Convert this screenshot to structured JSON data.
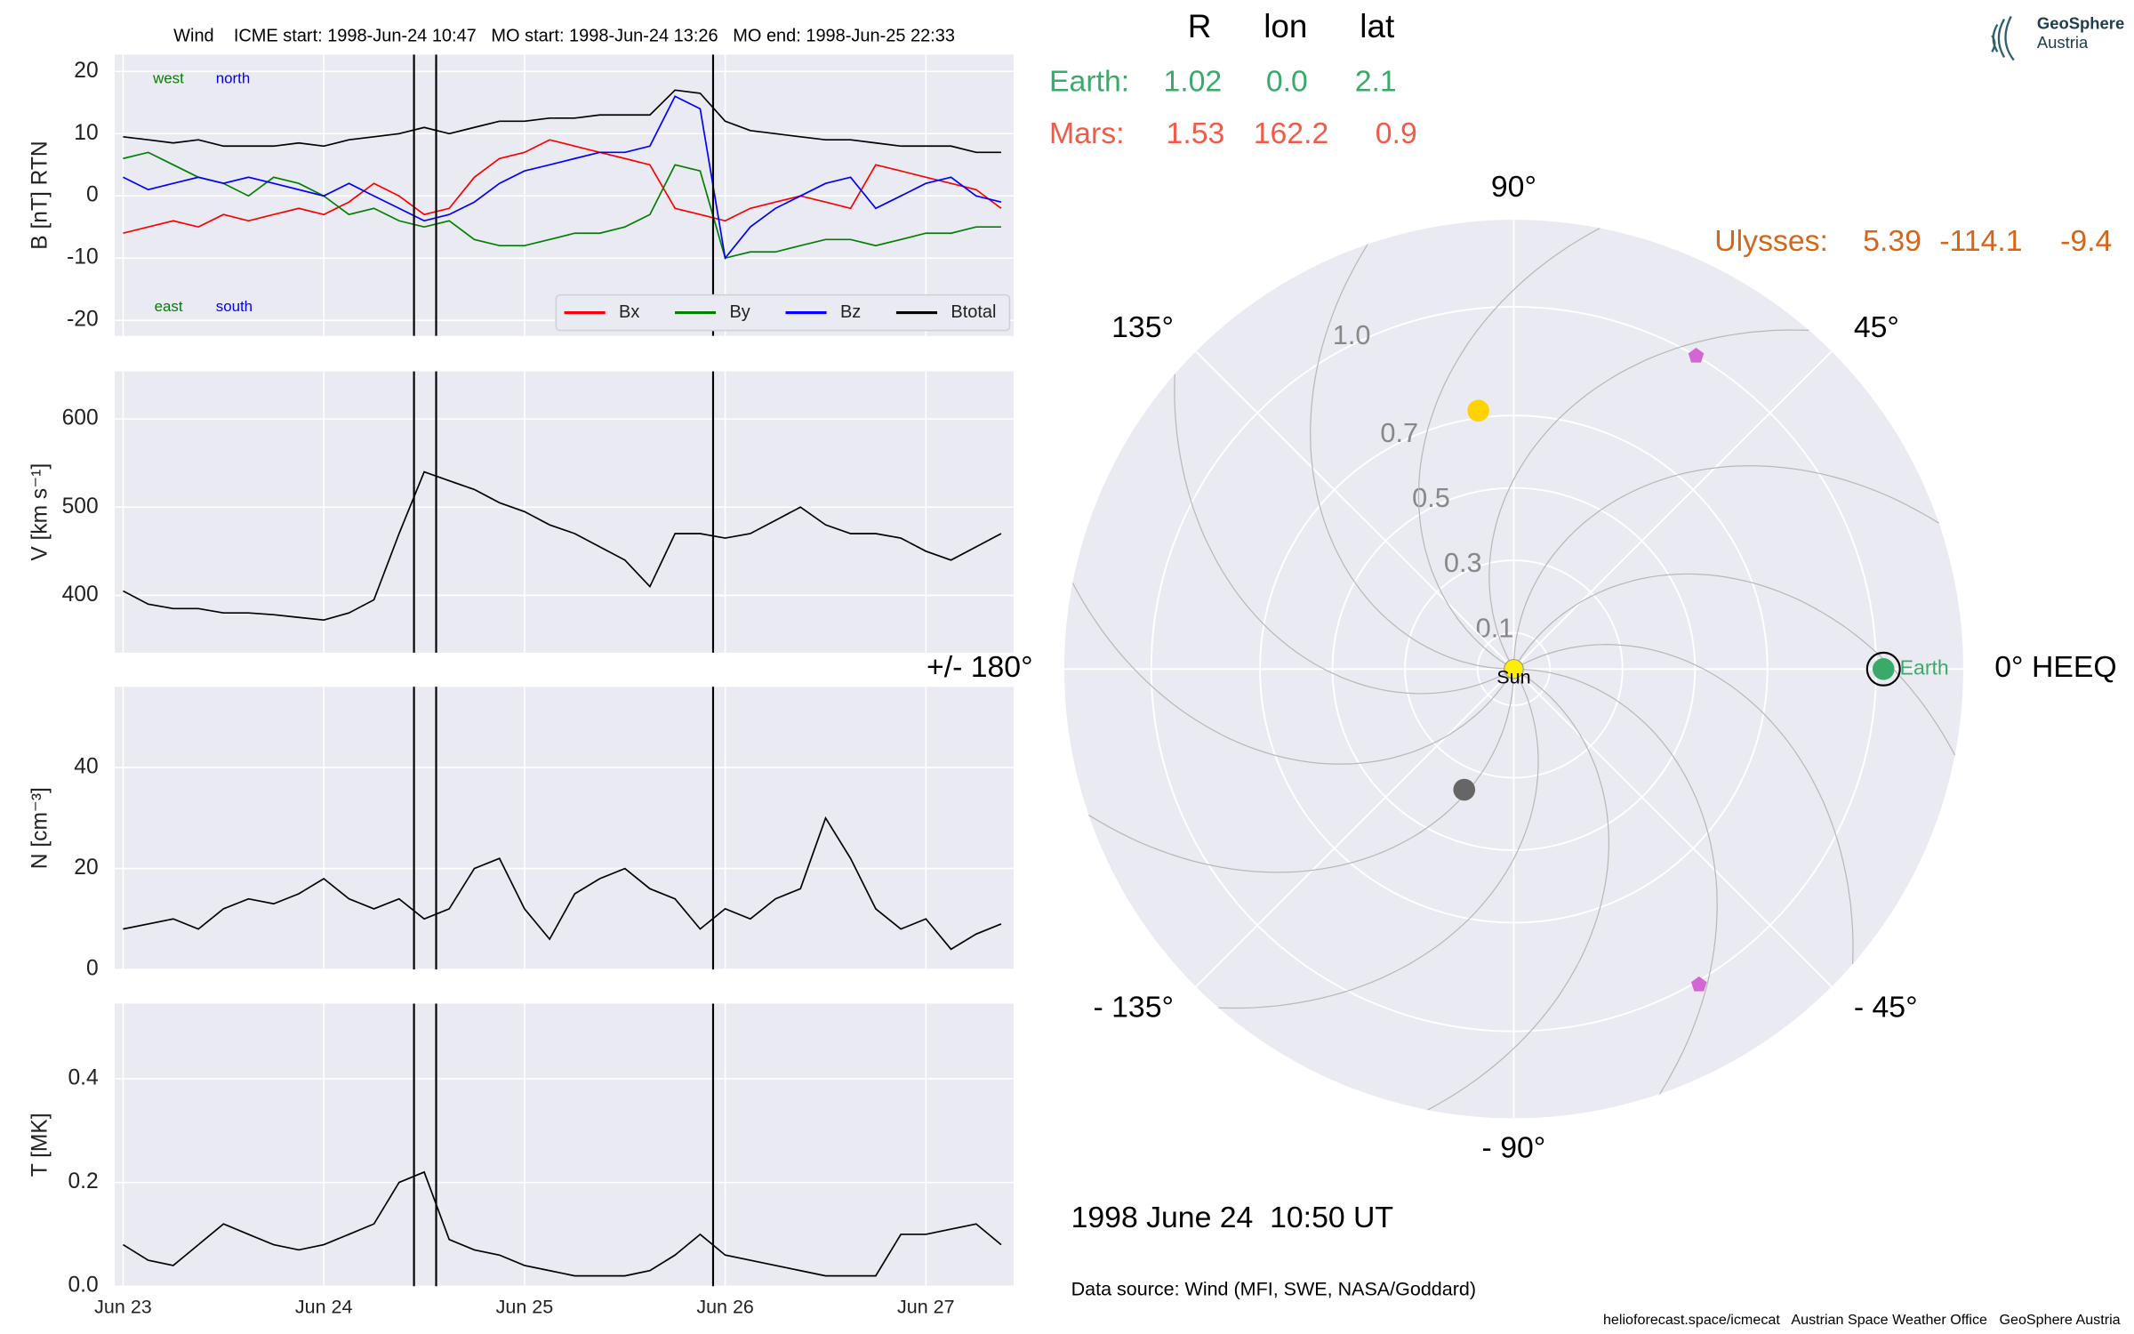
{
  "chart_data": [
    {
      "type": "line",
      "title": "Wind    ICME start: 1998-Jun-24 10:47   MO start: 1998-Jun-24 13:26   MO end: 1998-Jun-25 22:33",
      "ylabel": "B [nT] RTN",
      "x": [
        "1998-06-23T00:00",
        "1998-06-23T03:00",
        "1998-06-23T06:00",
        "1998-06-23T09:00",
        "1998-06-23T12:00",
        "1998-06-23T15:00",
        "1998-06-23T18:00",
        "1998-06-23T21:00",
        "1998-06-24T00:00",
        "1998-06-24T03:00",
        "1998-06-24T06:00",
        "1998-06-24T09:00",
        "1998-06-24T12:00",
        "1998-06-24T15:00",
        "1998-06-24T18:00",
        "1998-06-24T21:00",
        "1998-06-25T00:00",
        "1998-06-25T03:00",
        "1998-06-25T06:00",
        "1998-06-25T09:00",
        "1998-06-25T12:00",
        "1998-06-25T15:00",
        "1998-06-25T18:00",
        "1998-06-25T21:00",
        "1998-06-26T00:00",
        "1998-06-26T03:00",
        "1998-06-26T06:00",
        "1998-06-26T09:00",
        "1998-06-26T12:00",
        "1998-06-26T15:00",
        "1998-06-26T18:00",
        "1998-06-26T21:00",
        "1998-06-27T00:00",
        "1998-06-27T03:00",
        "1998-06-27T06:00",
        "1998-06-27T09:00"
      ],
      "series": [
        {
          "name": "Bx",
          "color": "#ff0000",
          "values": [
            -6,
            -5,
            -4,
            -5,
            -3,
            -4,
            -3,
            -2,
            -3,
            -1,
            2,
            0,
            -3,
            -2,
            3,
            6,
            7,
            9,
            8,
            7,
            6,
            5,
            -2,
            -3,
            -4,
            -2,
            -1,
            0,
            -1,
            -2,
            5,
            4,
            3,
            2,
            1,
            -2
          ]
        },
        {
          "name": "By",
          "color": "#008000",
          "values": [
            6,
            7,
            5,
            3,
            2,
            0,
            3,
            2,
            0,
            -3,
            -2,
            -4,
            -5,
            -4,
            -7,
            -8,
            -8,
            -7,
            -6,
            -6,
            -5,
            -3,
            5,
            4,
            -10,
            -9,
            -9,
            -8,
            -7,
            -7,
            -8,
            -7,
            -6,
            -6,
            -5,
            -5
          ]
        },
        {
          "name": "Bz",
          "color": "#0000ff",
          "values": [
            3,
            1,
            2,
            3,
            2,
            3,
            2,
            1,
            0,
            2,
            0,
            -2,
            -4,
            -3,
            -1,
            2,
            4,
            5,
            6,
            7,
            7,
            8,
            16,
            14,
            -10,
            -5,
            -2,
            0,
            2,
            3,
            -2,
            0,
            2,
            3,
            0,
            -1
          ]
        },
        {
          "name": "Btotal",
          "color": "#000000",
          "values": [
            9.5,
            9,
            8.5,
            9,
            8,
            8,
            8,
            8.5,
            8,
            9,
            9.5,
            10,
            11,
            10,
            11,
            12,
            12,
            12.5,
            12.5,
            13,
            13,
            13,
            17,
            16.5,
            12,
            10.5,
            10,
            9.5,
            9,
            9,
            8.5,
            8,
            8,
            8,
            7,
            7
          ]
        }
      ],
      "annotations": [
        {
          "text": "west",
          "color": "#008000"
        },
        {
          "text": "north",
          "color": "#0000ff"
        },
        {
          "text": "east",
          "color": "#008000"
        },
        {
          "text": "south",
          "color": "#0000ff"
        }
      ],
      "legend": "lower right",
      "xlim": [
        "1998-06-22T23:00",
        "1998-06-27T10:30"
      ],
      "xticks": [
        "1998-06-23T00:00",
        "1998-06-24T00:00",
        "1998-06-25T00:00",
        "1998-06-26T00:00",
        "1998-06-27T00:00"
      ],
      "ylim": [
        -22.5,
        22.7
      ],
      "yticks": [
        -20,
        -10,
        0,
        10,
        20
      ],
      "vlines": [
        "1998-06-24T10:47",
        "1998-06-24T13:26",
        "1998-06-25T22:33"
      ],
      "grid": true
    },
    {
      "type": "line",
      "ylabel": "V [km s⁻¹]",
      "x": [
        "1998-06-23T00:00",
        "1998-06-23T03:00",
        "1998-06-23T06:00",
        "1998-06-23T09:00",
        "1998-06-23T12:00",
        "1998-06-23T15:00",
        "1998-06-23T18:00",
        "1998-06-23T21:00",
        "1998-06-24T00:00",
        "1998-06-24T03:00",
        "1998-06-24T06:00",
        "1998-06-24T09:00",
        "1998-06-24T12:00",
        "1998-06-24T15:00",
        "1998-06-24T18:00",
        "1998-06-24T21:00",
        "1998-06-25T00:00",
        "1998-06-25T03:00",
        "1998-06-25T06:00",
        "1998-06-25T09:00",
        "1998-06-25T12:00",
        "1998-06-25T15:00",
        "1998-06-25T18:00",
        "1998-06-25T21:00",
        "1998-06-26T00:00",
        "1998-06-26T03:00",
        "1998-06-26T06:00",
        "1998-06-26T09:00",
        "1998-06-26T12:00",
        "1998-06-26T15:00",
        "1998-06-26T18:00",
        "1998-06-26T21:00",
        "1998-06-27T00:00",
        "1998-06-27T03:00",
        "1998-06-27T06:00",
        "1998-06-27T09:00"
      ],
      "series": [
        {
          "color": "#000000",
          "values": [
            405,
            390,
            385,
            385,
            380,
            380,
            378,
            375,
            372,
            380,
            395,
            470,
            540,
            530,
            520,
            505,
            495,
            480,
            470,
            455,
            440,
            410,
            470,
            470,
            465,
            470,
            485,
            500,
            480,
            470,
            470,
            465,
            450,
            440,
            455,
            470
          ]
        }
      ],
      "xlim": [
        "1998-06-22T23:00",
        "1998-06-27T10:30"
      ],
      "xticks": [
        "1998-06-23T00:00",
        "1998-06-24T00:00",
        "1998-06-25T00:00",
        "1998-06-26T00:00",
        "1998-06-27T00:00"
      ],
      "ylim": [
        335,
        654
      ],
      "yticks": [
        400,
        500,
        600
      ],
      "vlines": [
        "1998-06-24T10:47",
        "1998-06-24T13:26",
        "1998-06-25T22:33"
      ],
      "grid": true
    },
    {
      "type": "line",
      "ylabel": "N [cm⁻³]",
      "x": [
        "1998-06-23T00:00",
        "1998-06-23T03:00",
        "1998-06-23T06:00",
        "1998-06-23T09:00",
        "1998-06-23T12:00",
        "1998-06-23T15:00",
        "1998-06-23T18:00",
        "1998-06-23T21:00",
        "1998-06-24T00:00",
        "1998-06-24T03:00",
        "1998-06-24T06:00",
        "1998-06-24T09:00",
        "1998-06-24T12:00",
        "1998-06-24T15:00",
        "1998-06-24T18:00",
        "1998-06-24T21:00",
        "1998-06-25T00:00",
        "1998-06-25T03:00",
        "1998-06-25T06:00",
        "1998-06-25T09:00",
        "1998-06-25T12:00",
        "1998-06-25T15:00",
        "1998-06-25T18:00",
        "1998-06-25T21:00",
        "1998-06-26T00:00",
        "1998-06-26T03:00",
        "1998-06-26T06:00",
        "1998-06-26T09:00",
        "1998-06-26T12:00",
        "1998-06-26T15:00",
        "1998-06-26T18:00",
        "1998-06-26T21:00",
        "1998-06-27T00:00",
        "1998-06-27T03:00",
        "1998-06-27T06:00",
        "1998-06-27T09:00"
      ],
      "series": [
        {
          "color": "#000000",
          "values": [
            8,
            9,
            10,
            8,
            12,
            14,
            13,
            15,
            18,
            14,
            12,
            14,
            10,
            12,
            20,
            22,
            12,
            6,
            15,
            18,
            20,
            16,
            14,
            8,
            12,
            10,
            14,
            16,
            30,
            22,
            12,
            8,
            10,
            4,
            7,
            9
          ]
        }
      ],
      "xlim": [
        "1998-06-22T23:00",
        "1998-06-27T10:30"
      ],
      "xticks": [
        "1998-06-23T00:00",
        "1998-06-24T00:00",
        "1998-06-25T00:00",
        "1998-06-26T00:00",
        "1998-06-27T00:00"
      ],
      "ylim": [
        0,
        56
      ],
      "yticks": [
        0,
        20,
        40
      ],
      "vlines": [
        "1998-06-24T10:47",
        "1998-06-24T13:26",
        "1998-06-25T22:33"
      ],
      "grid": true
    },
    {
      "type": "line",
      "ylabel": "T [MK]",
      "x": [
        "1998-06-23T00:00",
        "1998-06-23T03:00",
        "1998-06-23T06:00",
        "1998-06-23T09:00",
        "1998-06-23T12:00",
        "1998-06-23T15:00",
        "1998-06-23T18:00",
        "1998-06-23T21:00",
        "1998-06-24T00:00",
        "1998-06-24T03:00",
        "1998-06-24T06:00",
        "1998-06-24T09:00",
        "1998-06-24T12:00",
        "1998-06-24T15:00",
        "1998-06-24T18:00",
        "1998-06-24T21:00",
        "1998-06-25T00:00",
        "1998-06-25T03:00",
        "1998-06-25T06:00",
        "1998-06-25T09:00",
        "1998-06-25T12:00",
        "1998-06-25T15:00",
        "1998-06-25T18:00",
        "1998-06-25T21:00",
        "1998-06-26T00:00",
        "1998-06-26T03:00",
        "1998-06-26T06:00",
        "1998-06-26T09:00",
        "1998-06-26T12:00",
        "1998-06-26T15:00",
        "1998-06-26T18:00",
        "1998-06-26T21:00",
        "1998-06-27T00:00",
        "1998-06-27T03:00",
        "1998-06-27T06:00",
        "1998-06-27T09:00"
      ],
      "series": [
        {
          "color": "#000000",
          "values": [
            0.08,
            0.05,
            0.04,
            0.08,
            0.12,
            0.1,
            0.08,
            0.07,
            0.08,
            0.1,
            0.12,
            0.2,
            0.22,
            0.09,
            0.07,
            0.06,
            0.04,
            0.03,
            0.02,
            0.02,
            0.02,
            0.03,
            0.06,
            0.1,
            0.06,
            0.05,
            0.04,
            0.03,
            0.02,
            0.02,
            0.02,
            0.1,
            0.1,
            0.11,
            0.12,
            0.08
          ]
        }
      ],
      "xlim": [
        "1998-06-22T23:00",
        "1998-06-27T10:30"
      ],
      "xticks": [
        {
          "value": "1998-06-23T00:00",
          "label": "Jun 23"
        },
        {
          "value": "1998-06-24T00:00",
          "label": "Jun 24"
        },
        {
          "value": "1998-06-25T00:00",
          "label": "Jun 25"
        },
        {
          "value": "1998-06-26T00:00",
          "label": "Jun 26"
        },
        {
          "value": "1998-06-27T00:00",
          "label": "Jun 27"
        }
      ],
      "ylim": [
        0,
        0.545
      ],
      "yticks": [
        {
          "value": 0,
          "label": "0.0"
        },
        0.2,
        0.4
      ],
      "vlines": [
        "1998-06-24T10:47",
        "1998-06-24T13:26",
        "1998-06-25T22:33"
      ],
      "grid": true
    },
    {
      "type": "polar",
      "rlim": [
        0,
        1.24
      ],
      "rticks": [
        0.1,
        0.3,
        0.5,
        0.7,
        {
          "value": 1,
          "label": "1.0"
        }
      ],
      "thetaticks": [
        {
          "value": 0,
          "label": "0° HEEQ"
        },
        {
          "value": 45,
          "label": "45°"
        },
        {
          "value": 90,
          "label": "90°"
        },
        {
          "value": 135,
          "label": "135°"
        },
        {
          "value": 180,
          "label": "+/- 180°"
        },
        {
          "value": -135,
          "label": "- 135°"
        },
        {
          "value": -90,
          "label": "- 90°"
        },
        {
          "value": -45,
          "label": "- 45°"
        }
      ],
      "points": [
        {
          "r": 0.72,
          "lon": 97.8,
          "color": "#ffd200",
          "marker": "circle"
        },
        {
          "r": 0.36,
          "lon": -112.3,
          "color": "#666666",
          "marker": "circle"
        },
        {
          "r": 1.0,
          "lon": 59.8,
          "color": "#d465d4",
          "marker": "pentagon"
        },
        {
          "r": 1.01,
          "lon": -59.6,
          "color": "#d465d4",
          "marker": "pentagon"
        },
        {
          "name": "Earth",
          "r": 1.02,
          "lon": 0,
          "color": "#3aaa6b",
          "marker": "circle"
        },
        {
          "r": 1.02,
          "lon": 0,
          "color": "#000000",
          "marker": "ring"
        },
        {
          "name": "Sun",
          "r": 0,
          "lon": 0,
          "color": "#ffee00",
          "marker": "circle"
        }
      ],
      "grid": true
    }
  ],
  "position_table": {
    "headers": [
      "R",
      "lon",
      "lat"
    ],
    "rows": [
      {
        "name": "Earth:",
        "color": "#3aaa6b",
        "values": [
          "1.02",
          "0.0",
          "2.1"
        ]
      },
      {
        "name": "Mars:",
        "color": "#f45a48",
        "values": [
          "1.53",
          "162.2",
          "0.9"
        ]
      },
      {
        "name": "Ulysses:",
        "color": "#d4661c",
        "values": [
          "5.39",
          "-114.1",
          "-9.4"
        ]
      }
    ]
  },
  "timestamp": "1998 June 24  10:50 UT",
  "data_source": "Data source: Wind (MFI, SWE, NASA/Goddard)",
  "credits": "helioforecast.space/icmecat   Austrian Space Weather Office   GeoSphere Austria",
  "logo": {
    "line1": "GeoSphere",
    "line2": "Austria"
  }
}
